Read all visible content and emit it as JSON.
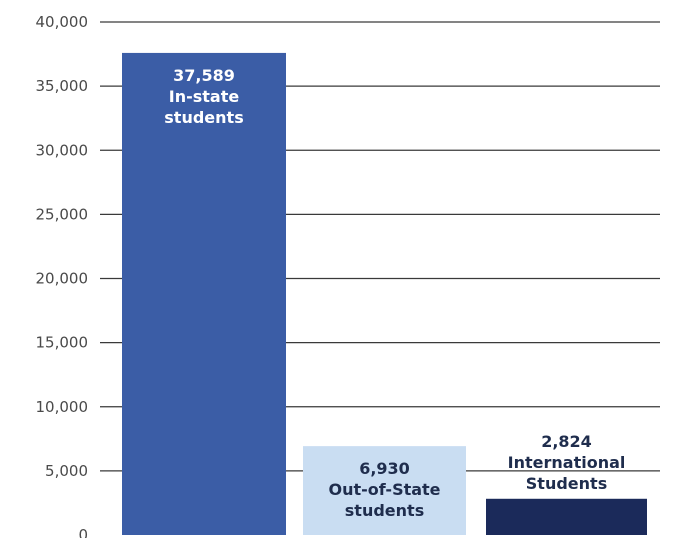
{
  "chart_data": {
    "type": "bar",
    "categories": [
      "In-state students",
      "Out-of-State students",
      "International Students"
    ],
    "values": [
      37589,
      6930,
      2824
    ],
    "data_labels": [
      [
        "37,589",
        "In-state",
        "students"
      ],
      [
        "6,930",
        "Out-of-State",
        "students"
      ],
      [
        "2,824",
        "International",
        "Students"
      ]
    ],
    "title": "",
    "xlabel": "",
    "ylabel": "",
    "ylim": [
      0,
      40000
    ],
    "yticks": [
      0,
      5000,
      10000,
      15000,
      20000,
      25000,
      30000,
      35000,
      40000
    ],
    "ytick_labels": [
      "0",
      "5,000",
      "10,000",
      "15,000",
      "20,000",
      "25,000",
      "30,000",
      "35,000",
      "40,000"
    ],
    "grid": true,
    "legend": "none",
    "colors": {
      "bars": [
        "#3b5da6",
        "#c9ddf2",
        "#1b2a5a"
      ],
      "label_on_bar": [
        "#ffffff",
        "#1f2d4d",
        "#1f2d4d"
      ],
      "gridline": "#3a3a3a",
      "tick_text": "#4a4a4a"
    },
    "label_position": [
      "inside-top",
      "inside-top",
      "above"
    ]
  }
}
